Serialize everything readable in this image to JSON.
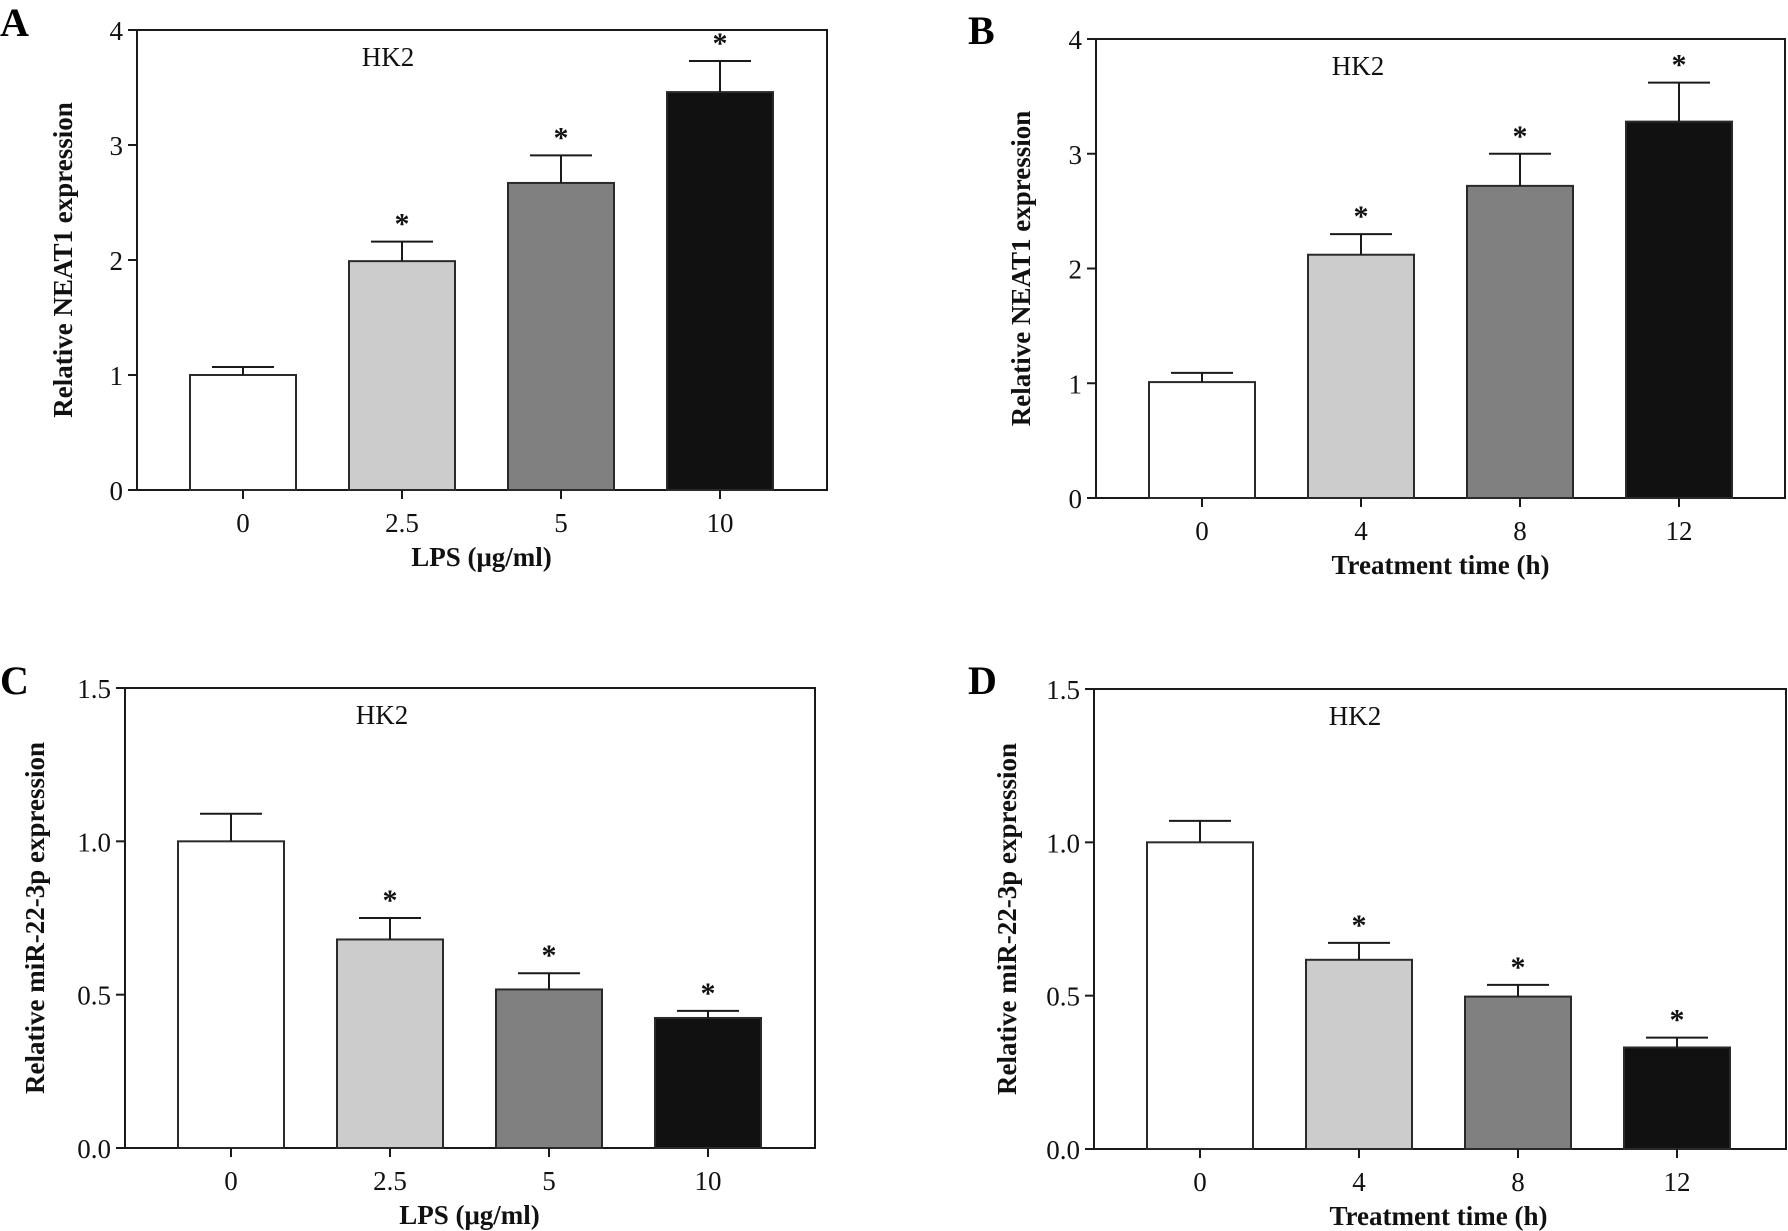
{
  "figure": {
    "panels": [
      "A",
      "B",
      "C",
      "D"
    ]
  },
  "chart_data": [
    {
      "panel": "A",
      "type": "bar",
      "title": "",
      "annotation": "HK2",
      "categories": [
        "0",
        "2.5",
        "5",
        "10"
      ],
      "values": [
        1.0,
        1.99,
        2.67,
        3.46
      ],
      "errors_upper": [
        1.07,
        2.16,
        2.91,
        3.73
      ],
      "significance": [
        "",
        "*",
        "*",
        "*"
      ],
      "bar_colors": [
        "#ffffff",
        "#cccccc",
        "#808080",
        "#111111"
      ],
      "xlabel": "LPS (μg/ml)",
      "ylabel": "Relative NEAT1 expression",
      "ylim": [
        0,
        4
      ],
      "yticks": [
        0,
        1,
        2,
        3,
        4
      ],
      "ytick_labels": [
        "0",
        "1",
        "2",
        "3",
        "4"
      ],
      "grid": false
    },
    {
      "panel": "B",
      "type": "bar",
      "title": "",
      "annotation": "HK2",
      "categories": [
        "0",
        "4",
        "8",
        "12"
      ],
      "values": [
        1.01,
        2.12,
        2.72,
        3.28
      ],
      "errors_upper": [
        1.09,
        2.3,
        3.0,
        3.62
      ],
      "significance": [
        "",
        "*",
        "*",
        "*"
      ],
      "bar_colors": [
        "#ffffff",
        "#cccccc",
        "#808080",
        "#111111"
      ],
      "xlabel": "Treatment time (h)",
      "ylabel": "Relative NEAT1 expression",
      "ylim": [
        0,
        4
      ],
      "yticks": [
        0,
        1,
        2,
        3,
        4
      ],
      "ytick_labels": [
        "0",
        "1",
        "2",
        "3",
        "4"
      ],
      "grid": false
    },
    {
      "panel": "C",
      "type": "bar",
      "title": "",
      "annotation": "HK2",
      "categories": [
        "0",
        "2.5",
        "5",
        "10"
      ],
      "values": [
        1.0,
        0.68,
        0.517,
        0.424
      ],
      "errors_upper": [
        1.09,
        0.75,
        0.57,
        0.447
      ],
      "significance": [
        "",
        "*",
        "*",
        "*"
      ],
      "bar_colors": [
        "#ffffff",
        "#cccccc",
        "#808080",
        "#111111"
      ],
      "xlabel": "LPS (μg/ml)",
      "ylabel": "Relative miR-22-3p expression",
      "ylim": [
        0,
        1.5
      ],
      "yticks": [
        0,
        0.5,
        1.0,
        1.5
      ],
      "ytick_labels": [
        "0.0",
        "0.5",
        "1.0",
        "1.5"
      ],
      "grid": false
    },
    {
      "panel": "D",
      "type": "bar",
      "title": "",
      "annotation": "HK2",
      "categories": [
        "0",
        "4",
        "8",
        "12"
      ],
      "values": [
        1.0,
        0.617,
        0.497,
        0.331
      ],
      "errors_upper": [
        1.07,
        0.672,
        0.535,
        0.363
      ],
      "significance": [
        "",
        "*",
        "*",
        "*"
      ],
      "bar_colors": [
        "#ffffff",
        "#cccccc",
        "#808080",
        "#111111"
      ],
      "xlabel": "Treatment time (h)",
      "ylabel": "Relative miR-22-3p expression",
      "ylim": [
        0,
        1.5
      ],
      "yticks": [
        0,
        0.5,
        1.0,
        1.5
      ],
      "ytick_labels": [
        "0.0",
        "0.5",
        "1.0",
        "1.5"
      ],
      "grid": false
    }
  ]
}
